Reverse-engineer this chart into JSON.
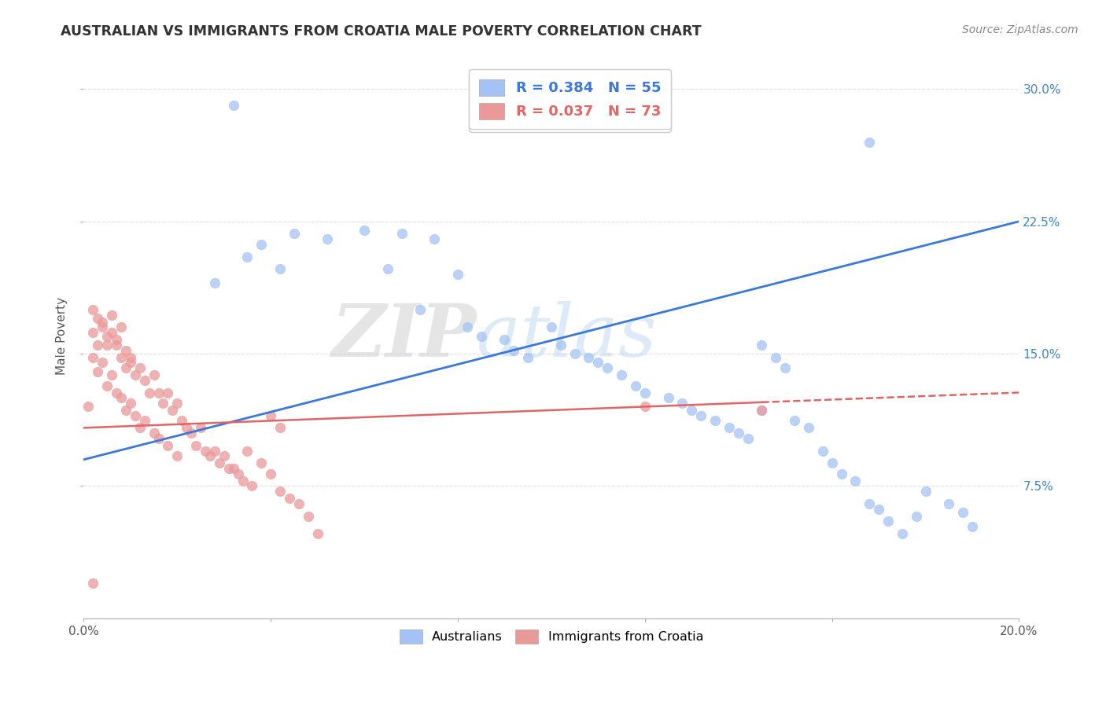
{
  "title": "AUSTRALIAN VS IMMIGRANTS FROM CROATIA MALE POVERTY CORRELATION CHART",
  "source": "Source: ZipAtlas.com",
  "ylabel": "Male Poverty",
  "watermark_zip": "ZIP",
  "watermark_atlas": "atlas",
  "blue_R": 0.384,
  "blue_N": 55,
  "pink_R": 0.037,
  "pink_N": 73,
  "legend_label_blue": "Australians",
  "legend_label_pink": "Immigrants from Croatia",
  "blue_color": "#a4c2f4",
  "pink_color": "#ea9999",
  "blue_line_color": "#3c78d8",
  "pink_line_color": "#e06666",
  "background_color": "#ffffff",
  "grid_color": "#e0e0e0",
  "xlim": [
    0.0,
    0.2
  ],
  "ylim": [
    0.0,
    0.32
  ],
  "blue_scatter_x": [
    0.032,
    0.042,
    0.038,
    0.045,
    0.028,
    0.035,
    0.052,
    0.06,
    0.065,
    0.068,
    0.075,
    0.072,
    0.08,
    0.082,
    0.085,
    0.09,
    0.092,
    0.095,
    0.1,
    0.102,
    0.105,
    0.108,
    0.11,
    0.112,
    0.115,
    0.118,
    0.12,
    0.125,
    0.128,
    0.13,
    0.132,
    0.135,
    0.138,
    0.14,
    0.142,
    0.145,
    0.148,
    0.15,
    0.152,
    0.155,
    0.158,
    0.16,
    0.162,
    0.165,
    0.168,
    0.17,
    0.172,
    0.175,
    0.178,
    0.18,
    0.185,
    0.188,
    0.19,
    0.145,
    0.168
  ],
  "blue_scatter_y": [
    0.291,
    0.198,
    0.212,
    0.218,
    0.19,
    0.205,
    0.215,
    0.22,
    0.198,
    0.218,
    0.215,
    0.175,
    0.195,
    0.165,
    0.16,
    0.158,
    0.152,
    0.148,
    0.165,
    0.155,
    0.15,
    0.148,
    0.145,
    0.142,
    0.138,
    0.132,
    0.128,
    0.125,
    0.122,
    0.118,
    0.115,
    0.112,
    0.108,
    0.105,
    0.102,
    0.155,
    0.148,
    0.142,
    0.112,
    0.108,
    0.095,
    0.088,
    0.082,
    0.078,
    0.065,
    0.062,
    0.055,
    0.048,
    0.058,
    0.072,
    0.065,
    0.06,
    0.052,
    0.118,
    0.27
  ],
  "pink_scatter_x": [
    0.001,
    0.002,
    0.002,
    0.003,
    0.003,
    0.004,
    0.004,
    0.005,
    0.005,
    0.006,
    0.006,
    0.007,
    0.007,
    0.008,
    0.008,
    0.009,
    0.009,
    0.01,
    0.01,
    0.011,
    0.011,
    0.012,
    0.012,
    0.013,
    0.013,
    0.014,
    0.015,
    0.015,
    0.016,
    0.016,
    0.017,
    0.018,
    0.018,
    0.019,
    0.02,
    0.02,
    0.021,
    0.022,
    0.023,
    0.024,
    0.025,
    0.026,
    0.027,
    0.028,
    0.029,
    0.03,
    0.031,
    0.032,
    0.033,
    0.034,
    0.035,
    0.036,
    0.038,
    0.04,
    0.042,
    0.044,
    0.046,
    0.048,
    0.05,
    0.002,
    0.003,
    0.004,
    0.005,
    0.006,
    0.007,
    0.008,
    0.009,
    0.01,
    0.04,
    0.042,
    0.12,
    0.145,
    0.002
  ],
  "pink_scatter_y": [
    0.12,
    0.162,
    0.148,
    0.155,
    0.14,
    0.168,
    0.145,
    0.155,
    0.132,
    0.162,
    0.138,
    0.155,
    0.128,
    0.148,
    0.125,
    0.142,
    0.118,
    0.148,
    0.122,
    0.138,
    0.115,
    0.142,
    0.108,
    0.135,
    0.112,
    0.128,
    0.138,
    0.105,
    0.128,
    0.102,
    0.122,
    0.128,
    0.098,
    0.118,
    0.122,
    0.092,
    0.112,
    0.108,
    0.105,
    0.098,
    0.108,
    0.095,
    0.092,
    0.095,
    0.088,
    0.092,
    0.085,
    0.085,
    0.082,
    0.078,
    0.095,
    0.075,
    0.088,
    0.082,
    0.072,
    0.068,
    0.065,
    0.058,
    0.048,
    0.175,
    0.17,
    0.165,
    0.16,
    0.172,
    0.158,
    0.165,
    0.152,
    0.145,
    0.115,
    0.108,
    0.12,
    0.118,
    0.02
  ]
}
